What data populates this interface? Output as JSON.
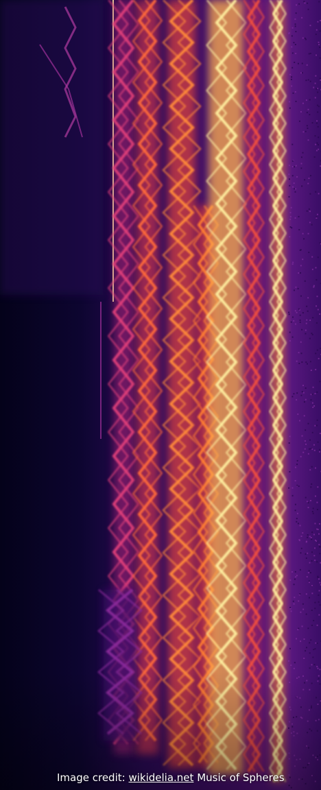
{
  "credit": {
    "prefix": "Image credit:",
    "link": "wikidelia.net",
    "suffix": "Music of Spheres"
  }
}
